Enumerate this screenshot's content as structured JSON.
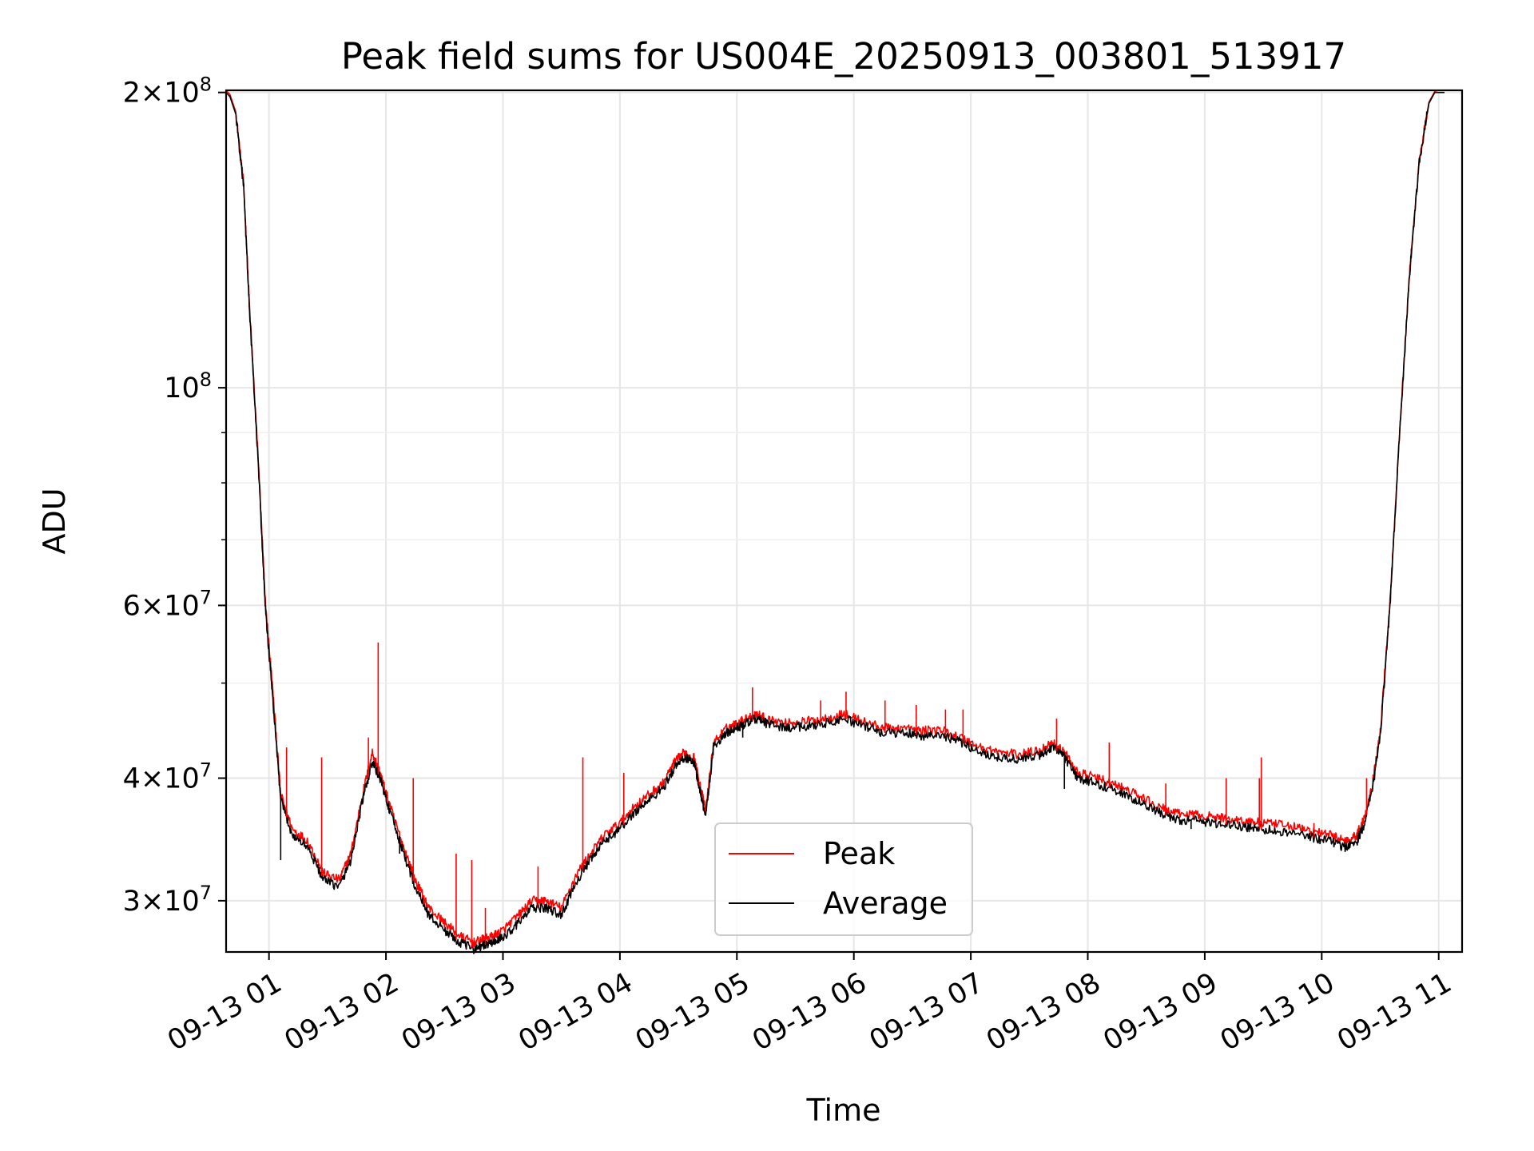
{
  "chart_data": {
    "type": "line",
    "title": "Peak field sums for US004E_20250913_003801_513917",
    "xlabel": "Time",
    "ylabel": "ADU",
    "xlim": [
      "2025-09-13 00:38",
      "2025-09-13 11:12"
    ],
    "ylim": [
      26600000,
      201000000
    ],
    "yscale": "log",
    "grid": true,
    "legend_position": "lower center",
    "x_ticks": [
      "09-13 01",
      "09-13 02",
      "09-13 03",
      "09-13 04",
      "09-13 05",
      "09-13 06",
      "09-13 07",
      "09-13 08",
      "09-13 09",
      "09-13 10",
      "09-13 11"
    ],
    "y_ticks": [
      {
        "value": 30000000,
        "mantissa": "3",
        "exponent": "7"
      },
      {
        "value": 40000000,
        "mantissa": "4",
        "exponent": "7"
      },
      {
        "value": 60000000,
        "mantissa": "6",
        "exponent": "7"
      },
      {
        "value": 100000000,
        "mantissa": "",
        "exponent": "8"
      },
      {
        "value": 200000000,
        "mantissa": "2",
        "exponent": "8"
      }
    ],
    "y_minor_ticks": [
      50000000,
      70000000,
      80000000,
      90000000
    ],
    "series": [
      {
        "name": "Peak",
        "color": "#ff0000"
      },
      {
        "name": "Average",
        "color": "#000000"
      }
    ],
    "x": [
      "00:38",
      "00:40",
      "00:43",
      "00:47",
      "00:50",
      "00:55",
      "00:58",
      "01:02",
      "01:06",
      "01:12",
      "01:20",
      "01:28",
      "01:36",
      "01:42",
      "01:48",
      "01:53",
      "01:57",
      "02:02",
      "02:08",
      "02:15",
      "02:22",
      "02:30",
      "02:38",
      "02:45",
      "02:50",
      "02:55",
      "03:00",
      "03:08",
      "03:15",
      "03:22",
      "03:30",
      "03:38",
      "03:45",
      "03:52",
      "04:00",
      "04:08",
      "04:15",
      "04:22",
      "04:28",
      "04:33",
      "04:38",
      "04:41",
      "04:44",
      "04:48",
      "04:55",
      "05:00",
      "05:05",
      "05:10",
      "05:15",
      "05:25",
      "05:35",
      "05:45",
      "05:55",
      "06:05",
      "06:15",
      "06:25",
      "06:35",
      "06:45",
      "06:55",
      "07:05",
      "07:15",
      "07:25",
      "07:35",
      "07:42",
      "07:48",
      "07:55",
      "08:05",
      "08:15",
      "08:25",
      "08:35",
      "08:45",
      "08:55",
      "09:05",
      "09:15",
      "09:25",
      "09:35",
      "09:45",
      "09:55",
      "10:05",
      "10:12",
      "10:18",
      "10:22",
      "10:26",
      "10:30",
      "10:35",
      "10:40",
      "10:45",
      "10:50",
      "10:55",
      "10:58",
      "11:00",
      "11:02",
      "11:03"
    ],
    "average": [
      200000000,
      198000000,
      190000000,
      160000000,
      120000000,
      80000000,
      60000000,
      48000000,
      38000000,
      35000000,
      34000000,
      31500000,
      31000000,
      33000000,
      38000000,
      41500000,
      40000000,
      37000000,
      34000000,
      31000000,
      29000000,
      28000000,
      27200000,
      26800000,
      27000000,
      27200000,
      27500000,
      28500000,
      29500000,
      29500000,
      29000000,
      31500000,
      33000000,
      34500000,
      35500000,
      37000000,
      38000000,
      39000000,
      41000000,
      42000000,
      41500000,
      39000000,
      36500000,
      43000000,
      44500000,
      45000000,
      45500000,
      46000000,
      45500000,
      45000000,
      45200000,
      45500000,
      46000000,
      45200000,
      44500000,
      44500000,
      44200000,
      44300000,
      43500000,
      42500000,
      42000000,
      41800000,
      42200000,
      43000000,
      42000000,
      40000000,
      39500000,
      38800000,
      38000000,
      37000000,
      36300000,
      36200000,
      36000000,
      35800000,
      35600000,
      35400000,
      35200000,
      34800000,
      34500000,
      34000000,
      34500000,
      36000000,
      39000000,
      44000000,
      60000000,
      90000000,
      130000000,
      170000000,
      195000000,
      200000000,
      200000000,
      200000000,
      200000000
    ],
    "peak": [
      201000000,
      199000000,
      191000000,
      161000000,
      121000000,
      81000000,
      61000000,
      49000000,
      38500000,
      35500000,
      34500000,
      32000000,
      31500000,
      33500000,
      38500000,
      42500000,
      40500000,
      37500000,
      34500000,
      31500000,
      29500000,
      28500000,
      27600000,
      27200000,
      27400000,
      27600000,
      28000000,
      29000000,
      30000000,
      30000000,
      29500000,
      32000000,
      33500000,
      35000000,
      36000000,
      37500000,
      38500000,
      39500000,
      41500000,
      42500000,
      42000000,
      39500000,
      37000000,
      43500000,
      45000000,
      45500000,
      46000000,
      46500000,
      46000000,
      45500000,
      45700000,
      46000000,
      46500000,
      45700000,
      45000000,
      45000000,
      44700000,
      44800000,
      44000000,
      43000000,
      42500000,
      42300000,
      42700000,
      43500000,
      42500000,
      40500000,
      40000000,
      39300000,
      38500000,
      37500000,
      36800000,
      36700000,
      36500000,
      36300000,
      36100000,
      35900000,
      35700000,
      35300000,
      35000000,
      34500000,
      35000000,
      36500000,
      39500000,
      44500000,
      60500000,
      90500000,
      130500000,
      170500000,
      195500000,
      200500000,
      201000000,
      201000000,
      201000000
    ],
    "peak_spikes": [
      {
        "x": "01:09",
        "y": 43000000
      },
      {
        "x": "01:27",
        "y": 42000000
      },
      {
        "x": "01:51",
        "y": 44000000
      },
      {
        "x": "01:56",
        "y": 55000000
      },
      {
        "x": "02:14",
        "y": 40000000
      },
      {
        "x": "02:36",
        "y": 33500000
      },
      {
        "x": "02:44",
        "y": 33000000
      },
      {
        "x": "02:51",
        "y": 29500000
      },
      {
        "x": "03:18",
        "y": 32500000
      },
      {
        "x": "03:37",
        "y": 31000000
      },
      {
        "x": "03:41",
        "y": 42000000
      },
      {
        "x": "04:02",
        "y": 40500000
      },
      {
        "x": "05:08",
        "y": 49500000
      },
      {
        "x": "05:43",
        "y": 48000000
      },
      {
        "x": "05:56",
        "y": 49000000
      },
      {
        "x": "06:16",
        "y": 48000000
      },
      {
        "x": "06:32",
        "y": 47500000
      },
      {
        "x": "06:47",
        "y": 47000000
      },
      {
        "x": "06:56",
        "y": 47000000
      },
      {
        "x": "07:44",
        "y": 46000000
      },
      {
        "x": "08:11",
        "y": 43500000
      },
      {
        "x": "08:40",
        "y": 39500000
      },
      {
        "x": "09:11",
        "y": 40000000
      },
      {
        "x": "09:28",
        "y": 40000000
      },
      {
        "x": "09:29",
        "y": 42000000
      },
      {
        "x": "09:56",
        "y": 36000000
      },
      {
        "x": "10:23",
        "y": 40000000
      }
    ],
    "average_dips": [
      {
        "x": "01:06",
        "y": 33000000
      },
      {
        "x": "02:07",
        "y": 33500000
      },
      {
        "x": "05:03",
        "y": 44000000
      },
      {
        "x": "07:48",
        "y": 39000000
      },
      {
        "x": "08:53",
        "y": 35500000
      }
    ]
  }
}
